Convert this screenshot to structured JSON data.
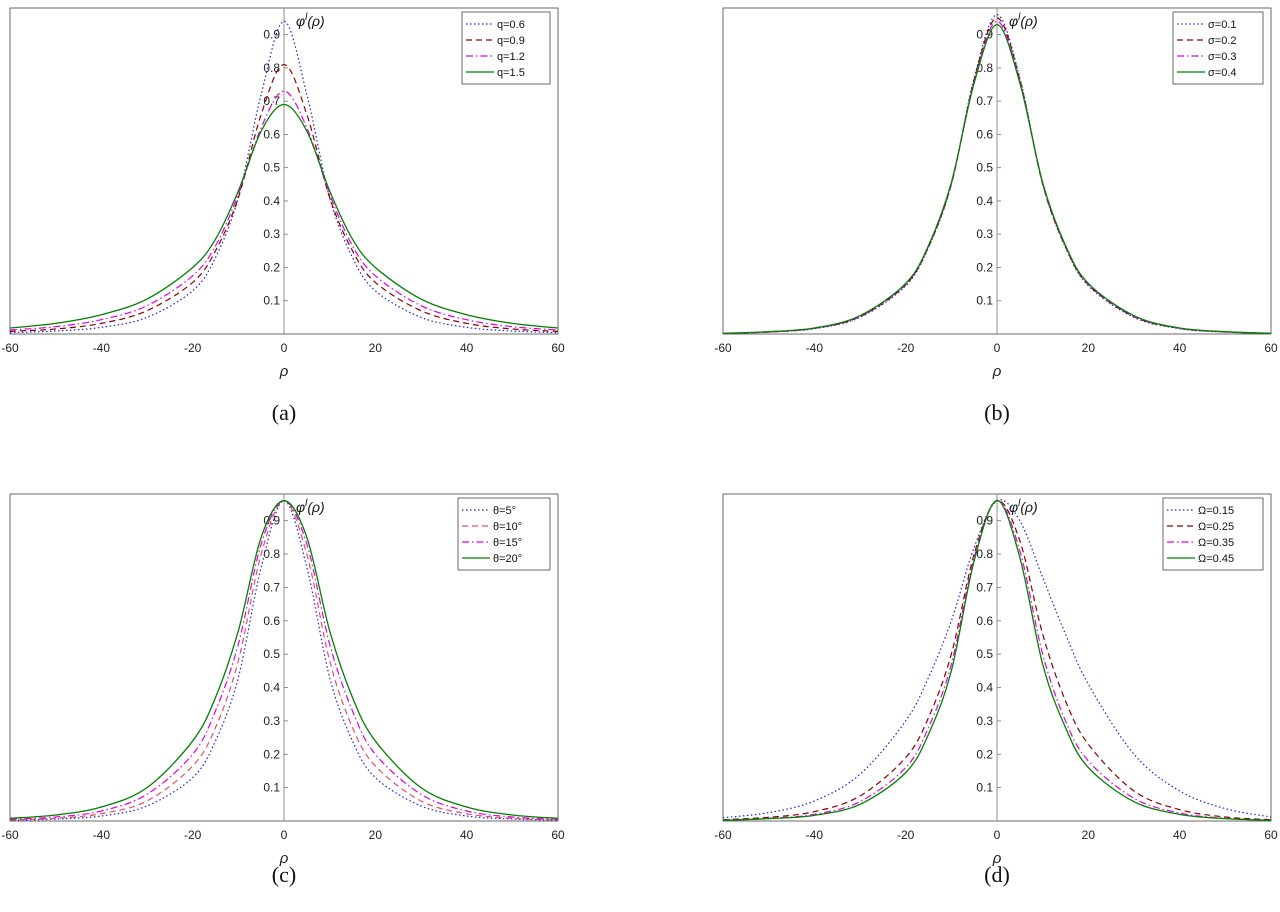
{
  "chart_data": [
    {
      "type": "line",
      "panel_label": "(a)",
      "xlabel": "ρ",
      "ylabel": "φ^l(ρ)",
      "xlim": [
        -60,
        60
      ],
      "ylim": [
        0,
        0.98
      ],
      "x_ticks": [
        "-60",
        "-40",
        "-20",
        "0",
        "20",
        "40",
        "60"
      ],
      "y_ticks": [
        "0.1",
        "0.2",
        "0.3",
        "0.4",
        "0.5",
        "0.6",
        "0.7",
        "0.8",
        "0.9"
      ],
      "legend_position": "top-right",
      "series": [
        {
          "name": "q=0.6",
          "color": "#1f1fd8",
          "style": "dotted",
          "x": [
            -60,
            -50,
            -40,
            -30,
            -20,
            -15,
            -10,
            -5,
            0,
            5,
            10,
            15,
            20,
            30,
            40,
            50,
            60
          ],
          "y": [
            0.004,
            0.009,
            0.02,
            0.05,
            0.13,
            0.23,
            0.41,
            0.72,
            0.94,
            0.72,
            0.41,
            0.23,
            0.13,
            0.05,
            0.02,
            0.009,
            0.004
          ]
        },
        {
          "name": "q=0.9",
          "color": "#8b0000",
          "style": "dashed",
          "x": [
            -60,
            -50,
            -40,
            -30,
            -20,
            -15,
            -10,
            -5,
            0,
            5,
            10,
            15,
            20,
            30,
            40,
            50,
            60
          ],
          "y": [
            0.008,
            0.015,
            0.032,
            0.07,
            0.155,
            0.25,
            0.41,
            0.66,
            0.81,
            0.66,
            0.41,
            0.25,
            0.155,
            0.07,
            0.032,
            0.015,
            0.008
          ]
        },
        {
          "name": "q=1.2",
          "color": "#e000e0",
          "style": "dashdot",
          "x": [
            -60,
            -50,
            -40,
            -30,
            -20,
            -15,
            -10,
            -5,
            0,
            5,
            10,
            15,
            20,
            30,
            40,
            50,
            60
          ],
          "y": [
            0.012,
            0.022,
            0.043,
            0.085,
            0.175,
            0.265,
            0.42,
            0.62,
            0.73,
            0.62,
            0.42,
            0.265,
            0.175,
            0.085,
            0.043,
            0.022,
            0.012
          ]
        },
        {
          "name": "q=1.5",
          "color": "#008000",
          "style": "solid",
          "x": [
            -60,
            -50,
            -40,
            -30,
            -20,
            -15,
            -10,
            -5,
            0,
            5,
            10,
            15,
            20,
            30,
            40,
            50,
            60
          ],
          "y": [
            0.018,
            0.032,
            0.058,
            0.105,
            0.2,
            0.285,
            0.43,
            0.61,
            0.69,
            0.61,
            0.43,
            0.285,
            0.2,
            0.105,
            0.058,
            0.032,
            0.018
          ]
        }
      ]
    },
    {
      "type": "line",
      "panel_label": "(b)",
      "xlabel": "ρ",
      "ylabel": "φ^l(ρ)",
      "xlim": [
        -60,
        60
      ],
      "ylim": [
        0,
        0.98
      ],
      "x_ticks": [
        "-60",
        "-40",
        "-20",
        "0",
        "20",
        "40",
        "60"
      ],
      "y_ticks": [
        "0.1",
        "0.2",
        "0.3",
        "0.4",
        "0.5",
        "0.6",
        "0.7",
        "0.8",
        "0.9"
      ],
      "legend_position": "top-right",
      "series": [
        {
          "name": "σ=0.1",
          "color": "#1f1fd8",
          "style": "dotted",
          "x": [
            -60,
            -50,
            -40,
            -30,
            -20,
            -15,
            -10,
            -5,
            0,
            5,
            10,
            15,
            20,
            30,
            40,
            50,
            60
          ],
          "y": [
            0.002,
            0.006,
            0.016,
            0.05,
            0.145,
            0.26,
            0.45,
            0.77,
            0.96,
            0.77,
            0.45,
            0.26,
            0.145,
            0.05,
            0.016,
            0.006,
            0.002
          ]
        },
        {
          "name": "σ=0.2",
          "color": "#8b0000",
          "style": "dashed",
          "x": [
            -60,
            -50,
            -40,
            -30,
            -20,
            -15,
            -10,
            -5,
            0,
            5,
            10,
            15,
            20,
            30,
            40,
            50,
            60
          ],
          "y": [
            0.002,
            0.006,
            0.017,
            0.052,
            0.148,
            0.262,
            0.45,
            0.765,
            0.95,
            0.765,
            0.45,
            0.262,
            0.148,
            0.052,
            0.017,
            0.006,
            0.002
          ]
        },
        {
          "name": "σ=0.3",
          "color": "#e000e0",
          "style": "dashdot",
          "x": [
            -60,
            -50,
            -40,
            -30,
            -20,
            -15,
            -10,
            -5,
            0,
            5,
            10,
            15,
            20,
            30,
            40,
            50,
            60
          ],
          "y": [
            0.002,
            0.006,
            0.017,
            0.053,
            0.15,
            0.264,
            0.452,
            0.76,
            0.94,
            0.76,
            0.452,
            0.264,
            0.15,
            0.053,
            0.017,
            0.006,
            0.002
          ]
        },
        {
          "name": "σ=0.4",
          "color": "#008000",
          "style": "solid",
          "x": [
            -60,
            -50,
            -40,
            -30,
            -20,
            -15,
            -10,
            -5,
            0,
            5,
            10,
            15,
            20,
            30,
            40,
            50,
            60
          ],
          "y": [
            0.002,
            0.007,
            0.018,
            0.055,
            0.152,
            0.266,
            0.455,
            0.755,
            0.93,
            0.755,
            0.455,
            0.266,
            0.152,
            0.055,
            0.018,
            0.007,
            0.002
          ]
        }
      ]
    },
    {
      "type": "line",
      "panel_label": "(c)",
      "xlabel": "ρ",
      "ylabel": "φ^l(ρ)",
      "xlim": [
        -60,
        60
      ],
      "ylim": [
        0,
        0.98
      ],
      "x_ticks": [
        "-60",
        "-40",
        "-20",
        "0",
        "20",
        "40",
        "60"
      ],
      "y_ticks": [
        "0.1",
        "0.2",
        "0.3",
        "0.4",
        "0.5",
        "0.6",
        "0.7",
        "0.8",
        "0.9"
      ],
      "legend_position": "top-right",
      "series": [
        {
          "name": "θ=5°",
          "color": "#1f1fd8",
          "style": "dotted",
          "x": [
            -60,
            -50,
            -40,
            -30,
            -20,
            -15,
            -10,
            -5,
            0,
            5,
            10,
            15,
            20,
            30,
            40,
            50,
            60
          ],
          "y": [
            0.002,
            0.006,
            0.015,
            0.045,
            0.13,
            0.24,
            0.43,
            0.76,
            0.96,
            0.76,
            0.43,
            0.24,
            0.13,
            0.045,
            0.015,
            0.006,
            0.002
          ]
        },
        {
          "name": "θ=10°",
          "color": "#e0506a",
          "style": "dashed",
          "x": [
            -60,
            -50,
            -40,
            -30,
            -20,
            -15,
            -10,
            -5,
            0,
            5,
            10,
            15,
            20,
            30,
            40,
            50,
            60
          ],
          "y": [
            0.003,
            0.008,
            0.022,
            0.06,
            0.165,
            0.28,
            0.48,
            0.8,
            0.96,
            0.8,
            0.48,
            0.28,
            0.165,
            0.06,
            0.022,
            0.008,
            0.003
          ]
        },
        {
          "name": "θ=15°",
          "color": "#e000e0",
          "style": "dashdot",
          "x": [
            -60,
            -50,
            -40,
            -30,
            -20,
            -15,
            -10,
            -5,
            0,
            5,
            10,
            15,
            20,
            30,
            40,
            50,
            60
          ],
          "y": [
            0.005,
            0.012,
            0.03,
            0.08,
            0.2,
            0.33,
            0.53,
            0.83,
            0.96,
            0.83,
            0.53,
            0.33,
            0.2,
            0.08,
            0.03,
            0.012,
            0.005
          ]
        },
        {
          "name": "θ=20°",
          "color": "#008000",
          "style": "solid",
          "x": [
            -60,
            -50,
            -40,
            -30,
            -20,
            -15,
            -10,
            -5,
            0,
            5,
            10,
            15,
            20,
            30,
            40,
            50,
            60
          ],
          "y": [
            0.008,
            0.018,
            0.042,
            0.1,
            0.24,
            0.37,
            0.57,
            0.85,
            0.96,
            0.85,
            0.57,
            0.37,
            0.24,
            0.1,
            0.042,
            0.018,
            0.008
          ]
        }
      ]
    },
    {
      "type": "line",
      "panel_label": "(d)",
      "xlabel": "ρ",
      "ylabel": "φ^l(ρ)",
      "xlim": [
        -60,
        60
      ],
      "ylim": [
        0,
        0.98
      ],
      "x_ticks": [
        "-60",
        "-40",
        "-20",
        "0",
        "20",
        "40",
        "60"
      ],
      "y_ticks": [
        "0.1",
        "0.2",
        "0.3",
        "0.4",
        "0.5",
        "0.6",
        "0.7",
        "0.8",
        "0.9"
      ],
      "legend_position": "top-right",
      "series": [
        {
          "name": "Ω=0.15",
          "color": "#1f1fd8",
          "style": "dotted",
          "x": [
            -60,
            -50,
            -40,
            -30,
            -20,
            -15,
            -10,
            -5,
            0,
            5,
            10,
            15,
            20,
            30,
            40,
            50,
            60
          ],
          "y": [
            0.01,
            0.025,
            0.06,
            0.14,
            0.3,
            0.43,
            0.6,
            0.82,
            0.96,
            0.9,
            0.73,
            0.56,
            0.41,
            0.2,
            0.09,
            0.037,
            0.012
          ]
        },
        {
          "name": "Ω=0.25",
          "color": "#8b0000",
          "style": "dashed",
          "x": [
            -60,
            -50,
            -40,
            -30,
            -20,
            -15,
            -10,
            -5,
            0,
            5,
            10,
            15,
            20,
            30,
            40,
            50,
            60
          ],
          "y": [
            0.004,
            0.011,
            0.028,
            0.075,
            0.19,
            0.31,
            0.5,
            0.8,
            0.96,
            0.84,
            0.56,
            0.36,
            0.23,
            0.09,
            0.034,
            0.012,
            0.004
          ]
        },
        {
          "name": "Ω=0.35",
          "color": "#e000e0",
          "style": "dashdot",
          "x": [
            -60,
            -50,
            -40,
            -30,
            -20,
            -15,
            -10,
            -5,
            0,
            5,
            10,
            15,
            20,
            30,
            40,
            50,
            60
          ],
          "y": [
            0.003,
            0.008,
            0.02,
            0.058,
            0.16,
            0.28,
            0.47,
            0.79,
            0.96,
            0.81,
            0.5,
            0.3,
            0.18,
            0.068,
            0.024,
            0.008,
            0.003
          ]
        },
        {
          "name": "Ω=0.45",
          "color": "#008000",
          "style": "solid",
          "x": [
            -60,
            -50,
            -40,
            -30,
            -20,
            -15,
            -10,
            -5,
            0,
            5,
            10,
            15,
            20,
            30,
            40,
            50,
            60
          ],
          "y": [
            0.002,
            0.007,
            0.017,
            0.05,
            0.145,
            0.26,
            0.45,
            0.78,
            0.96,
            0.79,
            0.47,
            0.28,
            0.16,
            0.058,
            0.02,
            0.007,
            0.002
          ]
        }
      ]
    }
  ]
}
